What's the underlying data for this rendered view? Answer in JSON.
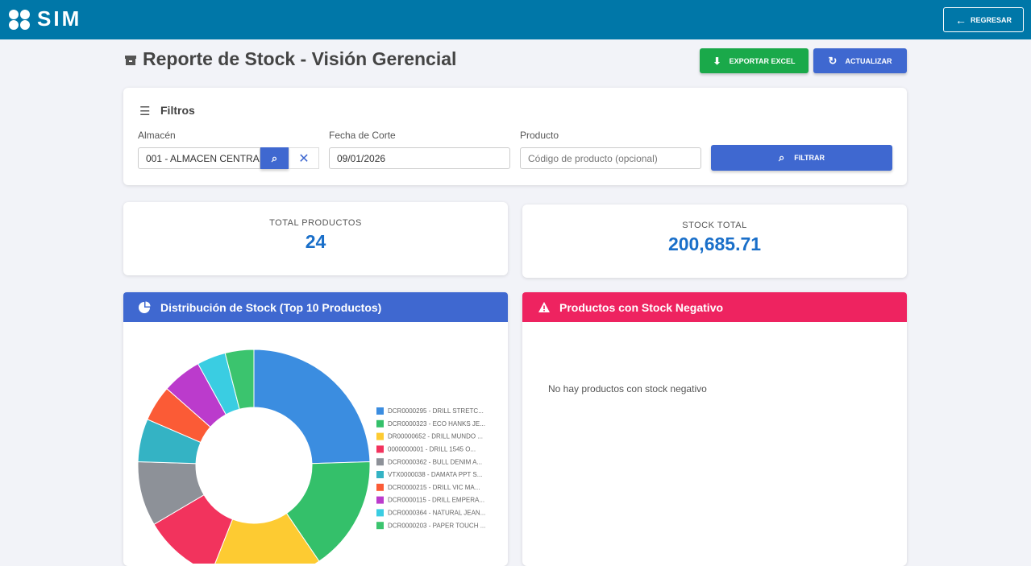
{
  "header": {
    "logo": "SIM",
    "back_button": "REGRESAR"
  },
  "page": {
    "title": "Reporte de Stock - Visión Gerencial",
    "export_button": "EXPORTAR EXCEL",
    "refresh_button": "ACTUALIZAR"
  },
  "filters": {
    "title": "Filtros",
    "warehouse_label": "Almacén",
    "warehouse_value": "001 - ALMACEN CENTRA",
    "date_label": "Fecha de Corte",
    "date_value": "09/01/2026",
    "product_label": "Producto",
    "product_placeholder": "Código de producto (opcional)",
    "filter_button": "FILTRAR"
  },
  "summary": {
    "total_products_label": "TOTAL PRODUCTOS",
    "total_products": "24",
    "total_stock_label": "STOCK TOTAL",
    "total_stock": "200,685.71"
  },
  "distribution": {
    "title": "Distribución de Stock (Top 10 Productos)",
    "chart": {
      "type": "pie",
      "donut": true,
      "categories": [
        "DCR0000295 - DRILL STRETC...",
        "DCR0000323 - ECO HANKS JE...",
        "DR00000652 - DRILL MUNDO ...",
        "0000000001 - DRILL 1545 O...",
        "DCR0000362 - BULL DENIM A...",
        "VTX0000038 - DAMATA PPT S...",
        "DCR0000215 - DRILL VIC MA...",
        "DCR0000115 - DRILL EMPERA...",
        "DCR0000364 - NATURAL JEAN...",
        "DCR0000203 - PAPER TOUCH ..."
      ],
      "values": [
        24.5,
        16,
        15.5,
        10.5,
        9,
        6,
        5,
        5.5,
        4,
        4
      ],
      "colors": [
        "#3b8de0",
        "#34c06a",
        "#fdcb32",
        "#f2335d",
        "#8d9198",
        "#34b3c4",
        "#fb5b36",
        "#bb3bcc",
        "#3acde2",
        "#3bc46e"
      ]
    }
  },
  "negative": {
    "title": "Productos con Stock Negativo",
    "empty_message": "No hay productos con stock negativo"
  }
}
